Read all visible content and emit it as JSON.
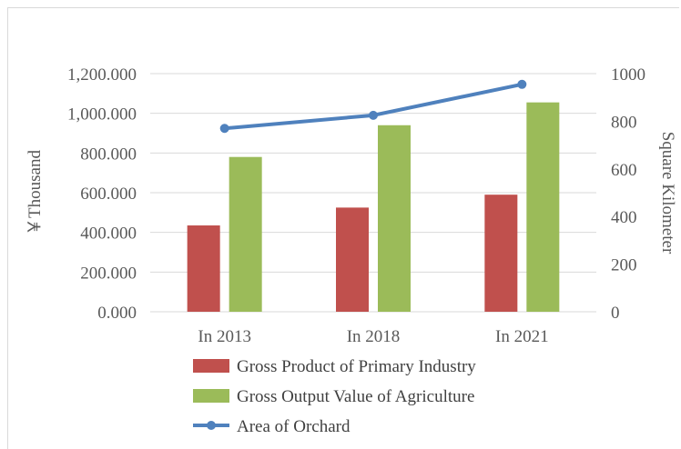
{
  "chart_data": {
    "type": "bar",
    "categories": [
      "In 2013",
      "In 2018",
      "In 2021"
    ],
    "series": [
      {
        "name": "Gross Product of Primary Industry",
        "type": "bar",
        "axis": "left",
        "color": "#c0504d",
        "values": [
          435,
          525,
          590
        ]
      },
      {
        "name": "Gross Output Value of Agriculture",
        "type": "bar",
        "axis": "left",
        "color": "#9bbb59",
        "values": [
          780,
          940,
          1055
        ]
      },
      {
        "name": "Area of Orchard",
        "type": "line",
        "axis": "right",
        "color": "#4f81bd",
        "values": [
          770,
          825,
          955
        ]
      }
    ],
    "ylabel": "￥Thousand",
    "ylabel_right": "Square Kilometer",
    "ylim": [
      0,
      1200
    ],
    "ylim_right": [
      0,
      1000
    ],
    "yticks": [
      "0.000",
      "200.000",
      "400.000",
      "600.000",
      "800.000",
      "1,000.000",
      "1,200.000"
    ],
    "yticks_right": [
      "0",
      "200",
      "400",
      "600",
      "800",
      "1000"
    ],
    "grid": true,
    "legend_position": "bottom",
    "colors": {
      "gridline": "#d9d9d9",
      "text": "#595959"
    }
  }
}
